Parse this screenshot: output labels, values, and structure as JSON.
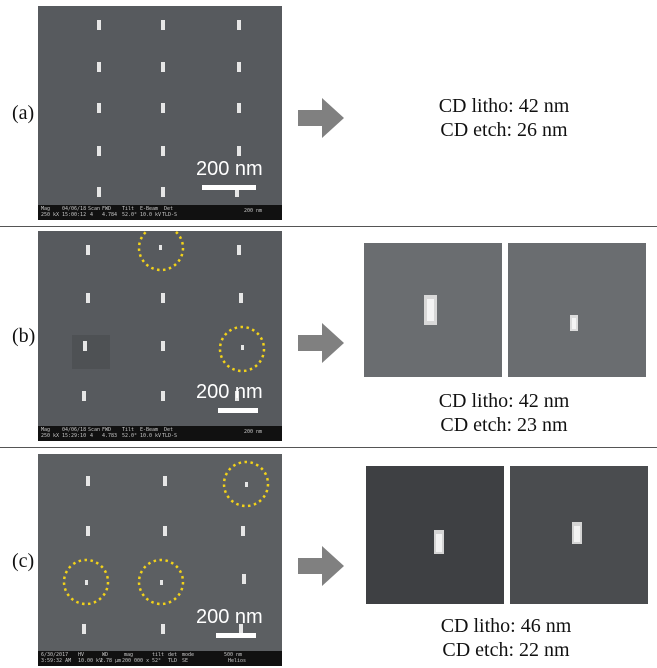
{
  "panels": [
    {
      "label": "(a)",
      "scale": "200 nm",
      "databar": [
        "Mag",
        "250 kX",
        "04/06/18",
        "15:00:12",
        "Scan",
        "4",
        "FWD",
        "4.784",
        "Tilt",
        "52.0°",
        "E-Beam",
        "10.0 kV",
        "Det",
        "TLD-S",
        "200 nm"
      ],
      "cd_litho": "CD litho: 42 nm",
      "cd_etch": "CD etch: 26 nm"
    },
    {
      "label": "(b)",
      "scale": "200 nm",
      "databar": [
        "Mag",
        "250 kX",
        "04/06/18",
        "15:29:10",
        "Scan",
        "4",
        "FWD",
        "4.783",
        "Tilt",
        "52.0°",
        "E-Beam",
        "10.0 kV",
        "Det",
        "TLD-S",
        "200 nm"
      ],
      "cd_litho": "CD litho: 42 nm",
      "cd_etch": "CD etch: 23 nm"
    },
    {
      "label": "(c)",
      "scale": "200 nm",
      "databar": [
        "6/30/2017",
        "3:59:32 AM",
        "HV",
        "10.00 kV",
        "WD",
        "2.78 µm",
        "mag",
        "200 000 x",
        "tilt",
        "52°",
        "det",
        "TLD",
        "mode",
        "SE",
        "500 nm",
        "Helios"
      ],
      "cd_litho": "CD litho: 46 nm",
      "cd_etch": "CD etch: 22 nm"
    }
  ],
  "colors": {
    "sem_background": "#575a5e",
    "pillar": "#e6e6e6",
    "highlight_circle": "#f2d21a",
    "arrow": "#808080"
  }
}
